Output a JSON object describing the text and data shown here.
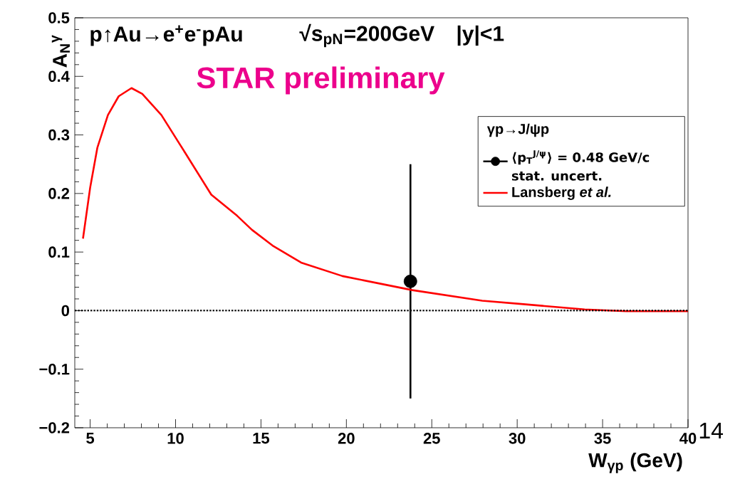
{
  "chart_data": {
    "type": "line",
    "annotations": [
      "p↑Au→e$^{+}$e$^{-}$pAu",
      "√s$_{pN}$=200GeV",
      "|y|<1",
      "STAR preliminary",
      "14"
    ],
    "xlabel": "W$_{γp}$ (GeV)",
    "ylabel": "A$_{N}$$^{γ}$",
    "legend_title": "γp→J/ψp",
    "xlim": [
      4.1,
      40
    ],
    "ylim": [
      -0.2,
      0.5
    ],
    "xticks": [
      5,
      10,
      15,
      20,
      25,
      30,
      35,
      40
    ],
    "yticks": [
      {
        "value": -0.2,
        "label": "−0.2"
      },
      {
        "value": -0.1,
        "label": "−0.1"
      },
      0,
      0.1,
      0.2,
      0.3,
      0.4,
      0.5
    ],
    "legend": "top right",
    "ref_lines": [
      {
        "axis": "y",
        "value": 0,
        "color": "#000000",
        "line_style": "dotted"
      }
    ],
    "series": [
      {
        "name": "⟨p$_{T}$$^{J/ψ}$⟩ = 0.48 GeV/c stat. uncert.",
        "type": "scatter",
        "color": "#000000",
        "marker": "circle",
        "x": [
          23.75
        ],
        "values": [
          0.05
        ],
        "errors": [
          0.2
        ]
      },
      {
        "name": "Lansberg *et al.*",
        "type": "line",
        "color": "#ff0000",
        "marker": "none",
        "line_style": "solid",
        "x": [
          4.58,
          5.0,
          5.42,
          6.04,
          6.67,
          7.42,
          8.05,
          9.17,
          10.55,
          12.09,
          13.6,
          14.47,
          15.68,
          17.35,
          19.77,
          22.15,
          23.86,
          27.95,
          30.37,
          33.95,
          36.37,
          40
        ],
        "values": [
          0.123,
          0.21,
          0.278,
          0.334,
          0.366,
          0.38,
          0.37,
          0.334,
          0.27,
          0.198,
          0.162,
          0.138,
          0.111,
          0.082,
          0.059,
          0.045,
          0.035,
          0.017,
          0.011,
          0.002,
          -0.001,
          -0.001
        ]
      }
    ]
  }
}
